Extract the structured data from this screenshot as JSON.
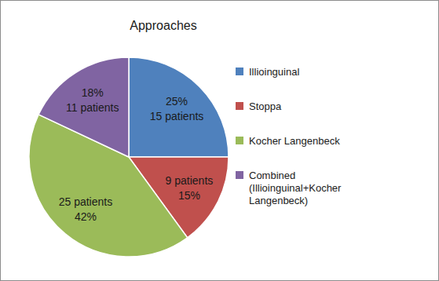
{
  "chart_data": {
    "type": "pie",
    "title": "Approaches",
    "categories": [
      "Illioinguinal",
      "Stoppa",
      "Kocher Langenbeck",
      "Combined (Illioinguinal+Kocher Langenbeck)"
    ],
    "values": [
      25,
      15,
      42,
      18
    ],
    "value_labels": [
      "25%",
      "15%",
      "42%",
      "18%"
    ],
    "patients": [
      15,
      9,
      25,
      11
    ],
    "patient_labels": [
      "15 patients",
      "9 patients",
      "25 patients",
      "11 patients"
    ],
    "colors": [
      "#4f81bd",
      "#c0504d",
      "#9bbb59",
      "#8064a2"
    ],
    "data_labels": true,
    "legend": "right"
  }
}
